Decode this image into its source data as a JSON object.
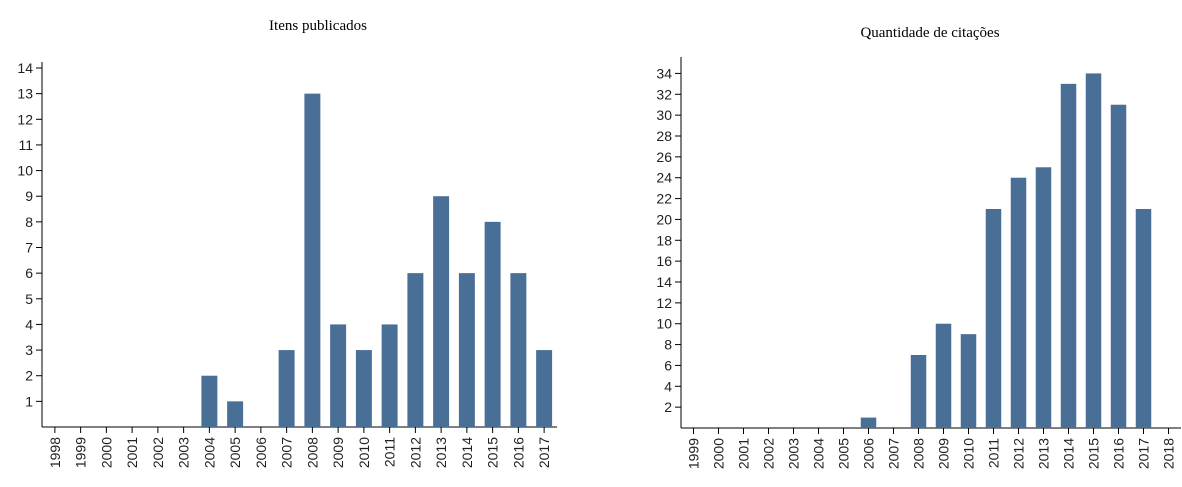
{
  "chart_data": [
    {
      "type": "bar",
      "title": "Itens publicados",
      "xlabel": "",
      "ylabel": "",
      "categories": [
        "1998",
        "1999",
        "2000",
        "2001",
        "2002",
        "2003",
        "2004",
        "2005",
        "2006",
        "2007",
        "2008",
        "2009",
        "2010",
        "2011",
        "2012",
        "2013",
        "2014",
        "2015",
        "2016",
        "2017"
      ],
      "values": [
        0,
        0,
        0,
        0,
        0,
        0,
        2,
        1,
        0,
        3,
        13,
        4,
        3,
        4,
        6,
        9,
        6,
        8,
        6,
        3
      ],
      "yticks": [
        1,
        2,
        3,
        4,
        5,
        6,
        7,
        8,
        9,
        10,
        11,
        12,
        13,
        14
      ],
      "ylim": [
        0,
        14
      ],
      "bar_color": "#4a6f96",
      "grid": false,
      "legend": "none"
    },
    {
      "type": "bar",
      "title": "Quantidade de citações",
      "xlabel": "",
      "ylabel": "",
      "categories": [
        "1999",
        "2000",
        "2001",
        "2002",
        "2003",
        "2004",
        "2005",
        "2006",
        "2007",
        "2008",
        "2009",
        "2010",
        "2011",
        "2012",
        "2013",
        "2014",
        "2015",
        "2016",
        "2017",
        "2018"
      ],
      "values": [
        0,
        0,
        0,
        0,
        0,
        0,
        0,
        1,
        0,
        7,
        10,
        9,
        21,
        24,
        25,
        33,
        34,
        31,
        21,
        0
      ],
      "yticks": [
        2,
        4,
        6,
        8,
        10,
        12,
        14,
        16,
        18,
        20,
        22,
        24,
        26,
        28,
        30,
        32,
        34
      ],
      "ylim": [
        0,
        35
      ],
      "bar_color": "#4a6f96",
      "grid": false,
      "legend": "none"
    }
  ]
}
